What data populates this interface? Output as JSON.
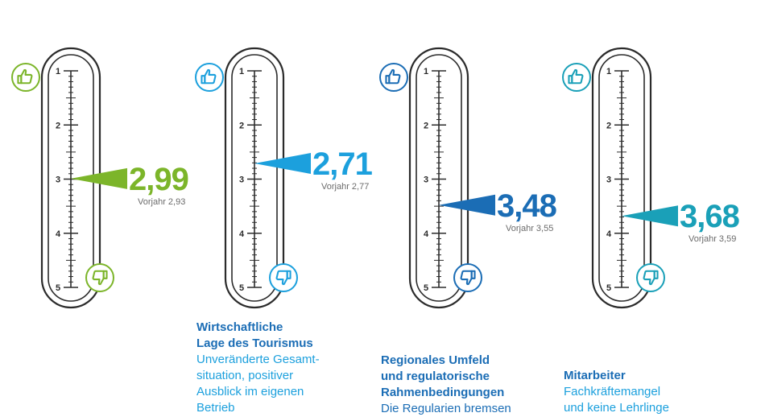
{
  "chart_data": {
    "type": "gauge",
    "scale_min": 1,
    "scale_max": 5,
    "tick_labels": [
      "1",
      "2",
      "3",
      "4",
      "5"
    ],
    "gauges": [
      {
        "value": 2.99,
        "value_label": "2,99",
        "previous_label": "Vorjahr 2,93",
        "color": "#7cb52a",
        "title_lines": [],
        "desc_lines": []
      },
      {
        "value": 2.71,
        "value_label": "2,71",
        "previous_label": "Vorjahr 2,77",
        "color": "#1ca0dd",
        "title_lines": [
          "Wirtschaftliche",
          "Lage des Tourismus"
        ],
        "desc_lines": [
          "Unveränderte Gesamt-",
          "situation, positiver",
          "Ausblick im eigenen",
          "Betrieb"
        ]
      },
      {
        "value": 3.48,
        "value_label": "3,48",
        "previous_label": "Vorjahr 3,55",
        "color": "#1b6db5",
        "title_lines": [
          "Regionales Umfeld",
          "und regulatorische",
          "Rahmenbedingungen"
        ],
        "desc_lines": [
          "Die Regularien bremsen"
        ]
      },
      {
        "value": 3.68,
        "value_label": "3,68",
        "previous_label": "Vorjahr 3,59",
        "color": "#1aa0b8",
        "title_lines": [
          "Mitarbeiter"
        ],
        "desc_lines": [
          "Fachkräftemangel",
          "und keine Lehrlinge"
        ]
      }
    ]
  }
}
